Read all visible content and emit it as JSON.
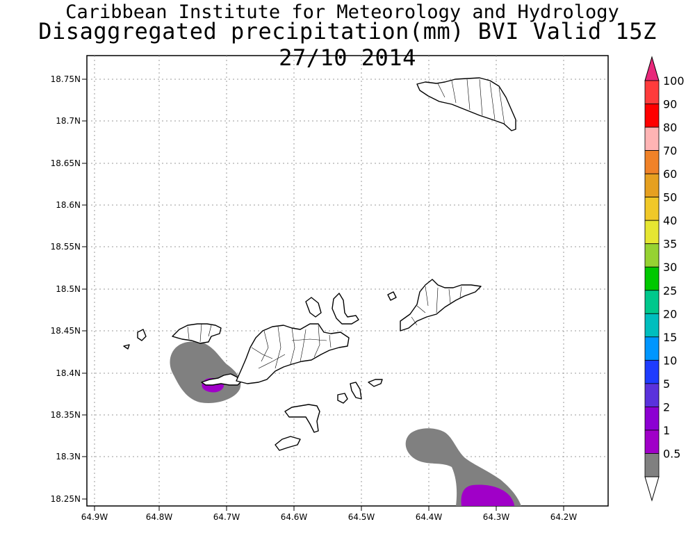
{
  "header": {
    "institute": "Caribbean Institute for Meteorology and Hydrology",
    "product": "Disaggregated precipitation(mm) BVI Valid 15Z 27/10 2014"
  },
  "map": {
    "region": "BVI",
    "lon_range": [
      -64.92,
      -64.15
    ],
    "lat_range": [
      18.24,
      18.79
    ],
    "lat_ticks": [
      "18.75N",
      "18.7N",
      "18.65N",
      "18.6N",
      "18.55N",
      "18.5N",
      "18.45N",
      "18.4N",
      "18.35N",
      "18.3N",
      "18.25N"
    ],
    "lon_ticks": [
      "64.9W",
      "64.8W",
      "64.7W",
      "64.6W",
      "64.5W",
      "64.4W",
      "64.3W",
      "64.2W"
    ],
    "gridlines": true,
    "grid_style": "dotted",
    "colors": {
      "land_outline": "#000000",
      "land_fill": "#ffffff",
      "precip_0_5_to_1": "#808080",
      "precip_1_to_2": "#a000c8"
    }
  },
  "colorbar": {
    "placement": "right",
    "labels": [
      "100",
      "90",
      "80",
      "70",
      "60",
      "50",
      "40",
      "35",
      "30",
      "25",
      "20",
      "15",
      "10",
      "5",
      "2",
      "1",
      "0.5"
    ],
    "bins": [
      {
        "label": "100",
        "color": "#e8287a"
      },
      {
        "label": "100",
        "color": "#ff3c3c"
      },
      {
        "label": "90",
        "color": "#ff0000"
      },
      {
        "label": "80",
        "color": "#ffb4b4"
      },
      {
        "label": "70",
        "color": "#f08228"
      },
      {
        "label": "60",
        "color": "#e6a020"
      },
      {
        "label": "50",
        "color": "#f0c828"
      },
      {
        "label": "40",
        "color": "#e6e632"
      },
      {
        "label": "35",
        "color": "#96d232"
      },
      {
        "label": "30",
        "color": "#00c800"
      },
      {
        "label": "25",
        "color": "#00c88c"
      },
      {
        "label": "20",
        "color": "#00bebe"
      },
      {
        "label": "15",
        "color": "#0096ff"
      },
      {
        "label": "10",
        "color": "#1e3cff"
      },
      {
        "label": "5",
        "color": "#5a32dc"
      },
      {
        "label": "2",
        "color": "#8c00d2"
      },
      {
        "label": "1",
        "color": "#a000c8"
      },
      {
        "label": "0.5",
        "color": "#808080"
      },
      {
        "label": "<0.5",
        "color": "#ffffff"
      }
    ]
  }
}
